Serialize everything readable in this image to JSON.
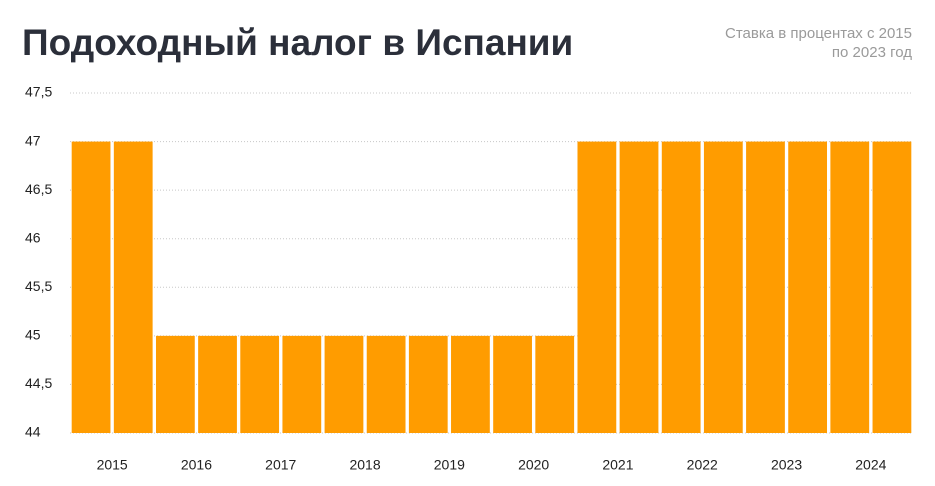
{
  "chart_data": {
    "type": "bar",
    "title": "Подоходный налог в Испании",
    "subtitle": [
      "Ставка в процентах с 2015",
      "по 2023 год"
    ],
    "categories": [
      "2015",
      null,
      "2016",
      null,
      "2017",
      null,
      "2018",
      null,
      "2019",
      null,
      "2020",
      null,
      "2021",
      null,
      "2022",
      null,
      "2023",
      null,
      "2024",
      null
    ],
    "values": [
      47,
      47,
      45,
      45,
      45,
      45,
      45,
      45,
      45,
      45,
      45,
      45,
      47,
      47,
      47,
      47,
      47,
      47,
      47,
      47
    ],
    "color": "#ff9c00",
    "ylim": [
      44,
      47.5
    ],
    "yticks": [
      44,
      {
        "value": 44.5,
        "label": "44,5"
      },
      45,
      {
        "value": 45.5,
        "label": "45,5"
      },
      46,
      {
        "value": 46.5,
        "label": "46,5"
      },
      47,
      {
        "value": 47.5,
        "label": "47,5"
      }
    ],
    "grid": true
  }
}
